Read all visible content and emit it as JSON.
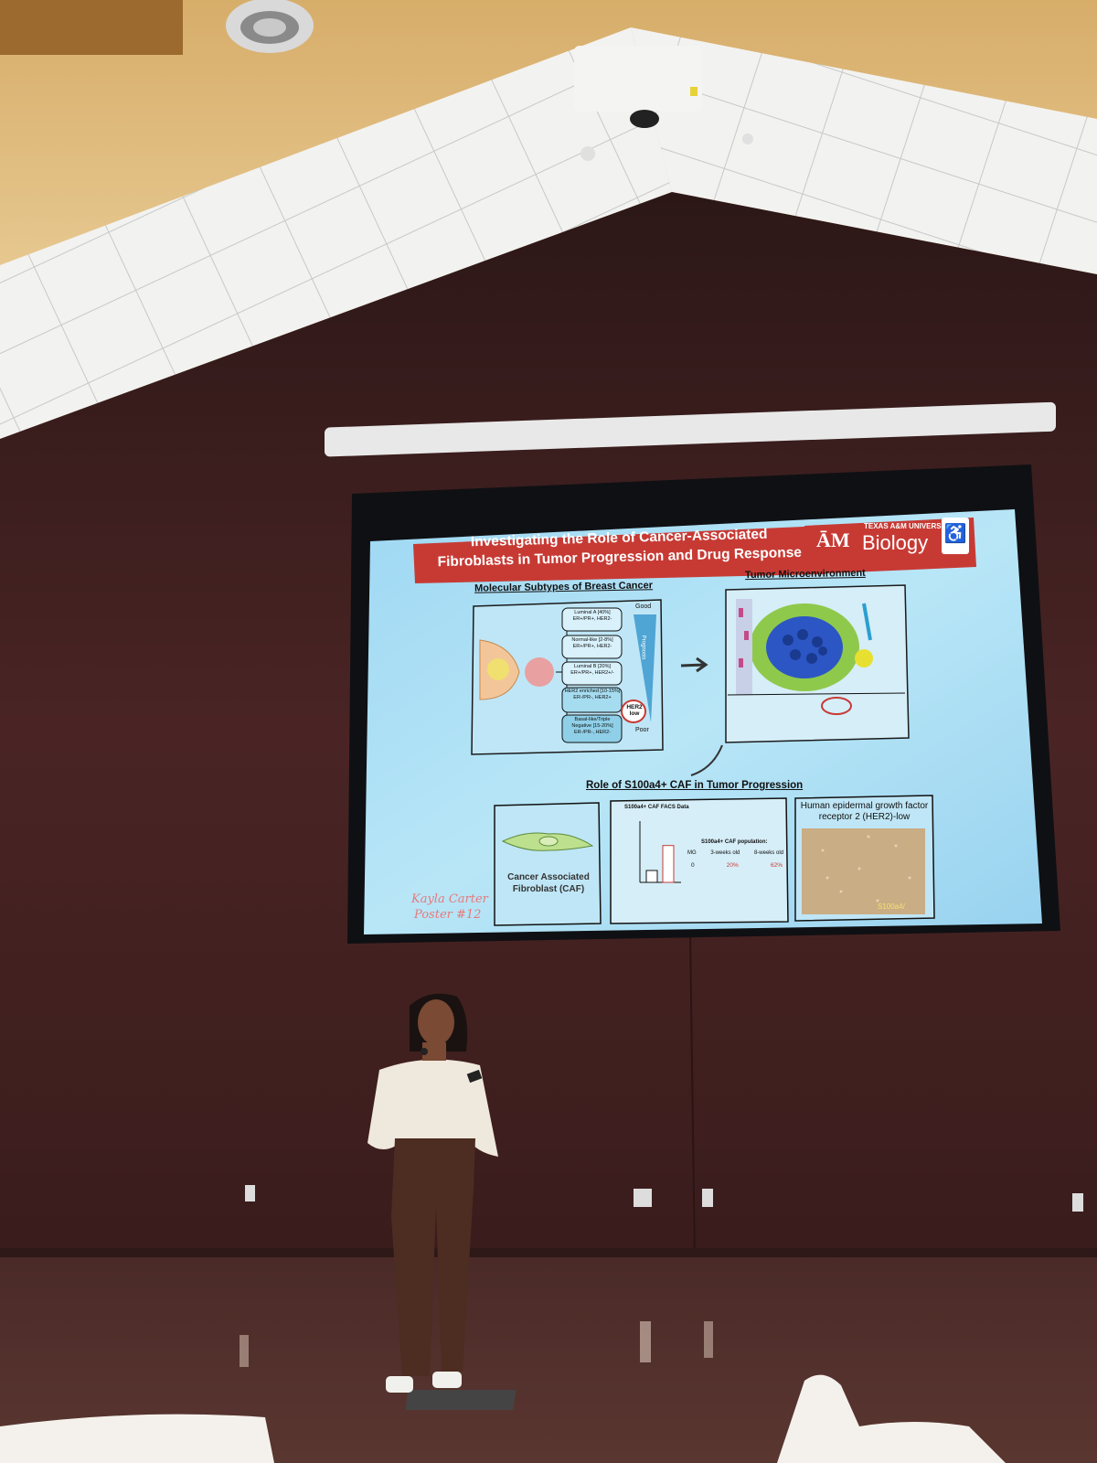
{
  "slide": {
    "title_line1": "Investigating the Role of Cancer-Associated",
    "title_line2": "Fibroblasts in Tumor Progression and Drug Response",
    "logo_atm": "ĀM",
    "logo_university": "TEXAS A&M UNIVERSITY",
    "logo_department": "Biology",
    "section_subtypes": "Molecular Subtypes of Breast Cancer",
    "section_microenvironment": "Tumor Microenvironment",
    "section_role": "Role of S100a4+ CAF in Tumor Progression",
    "subtypes": [
      {
        "name": "Luminal A [40%]",
        "markers": "ER+/PR+, HER2-"
      },
      {
        "name": "Normal-like [2-8%]",
        "markers": "ER+/PR+, HER2-"
      },
      {
        "name": "Luminal B [20%]",
        "markers": "ER+/PR+, HER2+/-"
      },
      {
        "name": "HER2 enriched [10-15%]",
        "markers": "ER-/PR-, HER2+"
      },
      {
        "name": "Basal-like/Triple Negative [15-20%]",
        "markers": "ER-/PR-, HER2-"
      }
    ],
    "prognosis_good": "Good",
    "prognosis_poor": "Poor",
    "prognosis_label": "Prognosis",
    "her2_label": "HER2 low",
    "caf_label": "Cancer Associated Fibroblast (CAF)",
    "facs_title": "S100a4+ CAF FACS Data",
    "facs_population": "S100a4+ CAF population:",
    "facs_columns": [
      "MG",
      "3-weeks old",
      "8-weeks old"
    ],
    "facs_values": [
      "0",
      "20%",
      "62%"
    ],
    "her2_panel_title": "Human epidermal growth factor receptor 2 (HER2)-low",
    "her2_panel_stain": "S100a4/",
    "presenter_name": "Kayla Carter",
    "presenter_poster": "Poster #12"
  },
  "colors": {
    "wall": "#3f2020",
    "ceiling": "#e8c58a",
    "screen": "#a9dcf3",
    "title_banner": "#c9302c"
  },
  "chart_data": {
    "type": "bar",
    "title": "S100a4+ CAF FACS Data",
    "categories": [
      "3-weeks",
      "8-weeks"
    ],
    "values": [
      20,
      62
    ]
  }
}
